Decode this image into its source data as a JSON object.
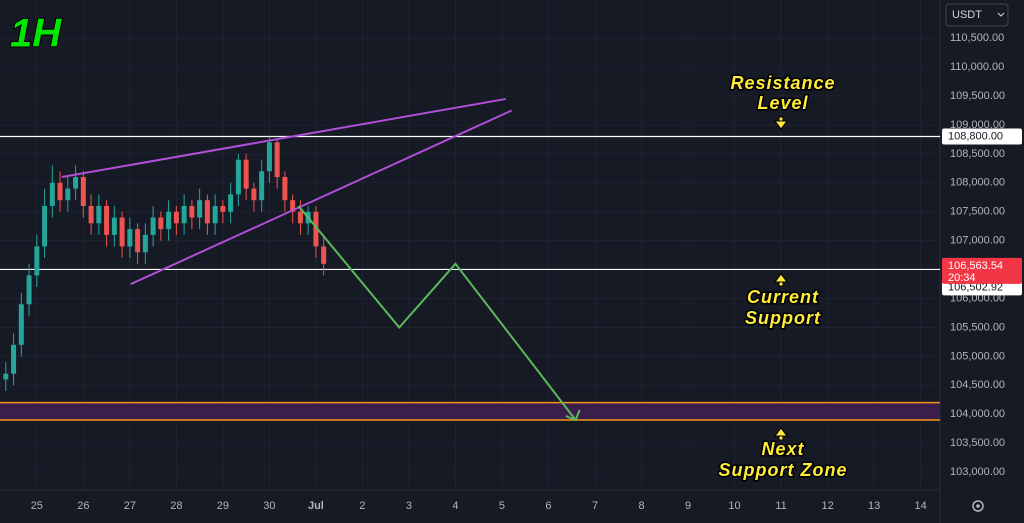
{
  "chart_data": {
    "type": "candlestick",
    "title": "1H",
    "currency": "USDT",
    "up_color": "#26a69a",
    "down_color": "#ef5350",
    "x": [
      -16,
      -12,
      -8,
      -4,
      0,
      4,
      8,
      12,
      16,
      20,
      24,
      28,
      32,
      36,
      40,
      44,
      48,
      52,
      56,
      60,
      64,
      68,
      72,
      76,
      80,
      84,
      88,
      92,
      96,
      100,
      104,
      108,
      112,
      116,
      120,
      124,
      128,
      132,
      136,
      140,
      144,
      148
    ],
    "open": [
      104600,
      104700,
      105200,
      105900,
      106400,
      106900,
      107600,
      108000,
      107700,
      107900,
      108100,
      107600,
      107300,
      107600,
      107100,
      107400,
      106900,
      107200,
      106800,
      107100,
      107400,
      107200,
      107500,
      107300,
      107600,
      107400,
      107700,
      107300,
      107600,
      107500,
      107800,
      108400,
      107900,
      107700,
      108200,
      108700,
      108100,
      107700,
      107500,
      107300,
      107500,
      106900
    ],
    "high": [
      104900,
      105400,
      106100,
      106600,
      107100,
      107900,
      108300,
      108200,
      108100,
      108300,
      108200,
      107800,
      107800,
      107700,
      107600,
      107500,
      107400,
      107300,
      107300,
      107600,
      107500,
      107700,
      107600,
      107800,
      107700,
      107900,
      107800,
      107800,
      107700,
      108000,
      108500,
      108500,
      108000,
      108400,
      108800,
      108750,
      108200,
      107800,
      107700,
      107600,
      107600,
      107100
    ],
    "low": [
      104400,
      104500,
      105000,
      105700,
      106200,
      106700,
      107400,
      107500,
      107500,
      107700,
      107400,
      107100,
      107100,
      106900,
      106900,
      106700,
      106700,
      106600,
      106600,
      106900,
      107000,
      107000,
      107100,
      107100,
      107200,
      107200,
      107100,
      107100,
      107300,
      107300,
      107600,
      107700,
      107500,
      107500,
      108000,
      107900,
      107500,
      107300,
      107100,
      107100,
      106700,
      106400
    ],
    "close": [
      104700,
      105200,
      105900,
      106400,
      106900,
      107600,
      108000,
      107700,
      107900,
      108100,
      107600,
      107300,
      107600,
      107100,
      107400,
      106900,
      107200,
      106800,
      107100,
      107400,
      107200,
      107500,
      107300,
      107600,
      107400,
      107700,
      107300,
      107600,
      107500,
      107800,
      108400,
      107900,
      107700,
      108200,
      108700,
      108100,
      107700,
      107500,
      107300,
      107500,
      106900,
      106600
    ],
    "xlim": [
      -19,
      466
    ],
    "xticks": [
      {
        "value": 0,
        "label": "25"
      },
      {
        "value": 24,
        "label": "26"
      },
      {
        "value": 48,
        "label": "27"
      },
      {
        "value": 72,
        "label": "28"
      },
      {
        "value": 96,
        "label": "29"
      },
      {
        "value": 120,
        "label": "30"
      },
      {
        "value": 144,
        "label": "Jul"
      },
      {
        "value": 168,
        "label": "2"
      },
      {
        "value": 192,
        "label": "3"
      },
      {
        "value": 216,
        "label": "4"
      },
      {
        "value": 240,
        "label": "5"
      },
      {
        "value": 264,
        "label": "6"
      },
      {
        "value": 288,
        "label": "7"
      },
      {
        "value": 312,
        "label": "8"
      },
      {
        "value": 336,
        "label": "9"
      },
      {
        "value": 360,
        "label": "10"
      },
      {
        "value": 384,
        "label": "11"
      },
      {
        "value": 408,
        "label": "12"
      },
      {
        "value": 432,
        "label": "13"
      },
      {
        "value": 456,
        "label": "14"
      }
    ],
    "ylim": [
      102690,
      111160
    ],
    "yticks": [
      {
        "value": 110500,
        "label": "110,500.00"
      },
      {
        "value": 110000,
        "label": "110,000.00"
      },
      {
        "value": 109500,
        "label": "109,500.00"
      },
      {
        "value": 109000,
        "label": "109,000.00"
      },
      {
        "value": 108500,
        "label": "108,500.00"
      },
      {
        "value": 108000,
        "label": "108,000.00"
      },
      {
        "value": 107500,
        "label": "107,500.00"
      },
      {
        "value": 107000,
        "label": "107,000.00"
      },
      {
        "value": 106500,
        "label": "106,500.00"
      },
      {
        "value": 106000,
        "label": "106,000.00"
      },
      {
        "value": 105500,
        "label": "105,500.00"
      },
      {
        "value": 105000,
        "label": "105,000.00"
      },
      {
        "value": 104500,
        "label": "104,500.00"
      },
      {
        "value": 104000,
        "label": "104,000.00"
      },
      {
        "value": 103500,
        "label": "103,500.00"
      },
      {
        "value": 103000,
        "label": "103,000.00"
      }
    ],
    "price_lines": [
      {
        "value": 108800,
        "label": "108,800.00",
        "color": "#ffffff"
      },
      {
        "value": 106502.92,
        "label": "106,502.92",
        "color": "#ffffff"
      }
    ],
    "last_price": {
      "value": 106563.54,
      "label": "106,563.54",
      "countdown": "20:34",
      "color": "#f23645"
    },
    "zone": {
      "low": 103900,
      "high": 104200,
      "color": "#f7931a",
      "fill": "#3a1f4a"
    },
    "trendlines": [
      {
        "color": "#b04fd8",
        "points": [
          [
            12.9,
            108100
          ],
          [
            242,
            109450
          ]
        ]
      },
      {
        "color": "#b04fd8",
        "points": [
          [
            48.5,
            106250
          ],
          [
            245,
            109250
          ]
        ]
      }
    ],
    "projection": {
      "color": "#5cb85c",
      "points": [
        [
          135,
          107600
        ],
        [
          187,
          105500
        ],
        [
          216,
          106600
        ],
        [
          278,
          103900
        ]
      ]
    },
    "annotations": [
      {
        "lines": [
          "Resistance",
          "Level"
        ]
      },
      {
        "lines": [
          "Current",
          "Support"
        ]
      },
      {
        "lines": [
          "Next",
          "Support Zone"
        ]
      }
    ]
  }
}
